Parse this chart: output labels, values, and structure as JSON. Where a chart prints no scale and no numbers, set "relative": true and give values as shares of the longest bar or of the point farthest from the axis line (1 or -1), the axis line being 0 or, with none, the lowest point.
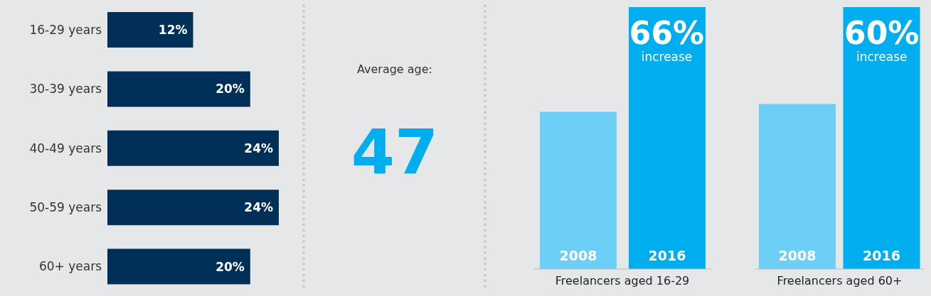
{
  "chart_data": [
    {
      "type": "bar",
      "orientation": "horizontal",
      "categories": [
        "16-29 years",
        "30-39 years",
        "40-49 years",
        "50-59 years",
        "60+ years"
      ],
      "values": [
        12,
        20,
        24,
        24,
        20
      ],
      "color": "#003057",
      "data_labels": true,
      "value_labels": [
        "12%",
        "20%",
        "24%",
        "24%",
        "20%"
      ]
    },
    {
      "type": "other",
      "title": "Average age:",
      "annotations": [
        "47"
      ]
    },
    {
      "type": "bar",
      "relative": true,
      "categories": [
        "2008",
        "2016"
      ],
      "values": [
        0.6,
        1
      ],
      "colors": [
        "#6dcff6",
        "#00aeef"
      ],
      "xlabel": "Freelancers aged 16-29",
      "annotations": [
        {
          "text": "66%",
          "x": "2016",
          "y": 1
        },
        "increase"
      ]
    },
    {
      "type": "bar",
      "relative": true,
      "categories": [
        "2008",
        "2016"
      ],
      "values": [
        0.63,
        1
      ],
      "colors": [
        "#6dcff6",
        "#00aeef"
      ],
      "xlabel": "Freelancers aged 60+",
      "annotations": [
        {
          "text": "60%",
          "x": "2016",
          "y": 1
        },
        "increase"
      ]
    }
  ]
}
